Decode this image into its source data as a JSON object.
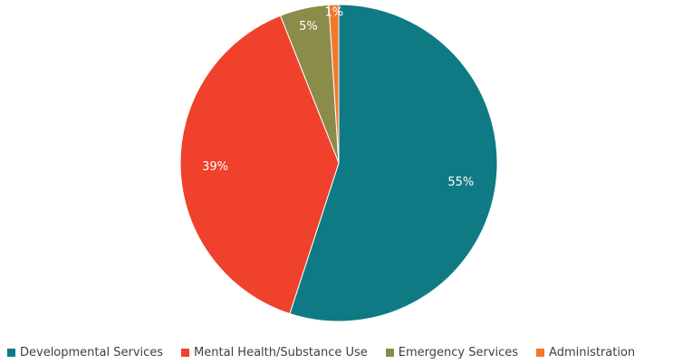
{
  "chart_data": {
    "type": "pie",
    "title": "",
    "start_angle_deg": 0,
    "direction": "clockwise",
    "slices": [
      {
        "name": "Developmental Services",
        "value": 55,
        "label": "55%",
        "color": "#107a84"
      },
      {
        "name": "Mental Health/Substance Use",
        "value": 39,
        "label": "39%",
        "color": "#ef412b"
      },
      {
        "name": "Emergency Services",
        "value": 5,
        "label": "5%",
        "color": "#8b8c4a"
      },
      {
        "name": "Administration",
        "value": 1,
        "label": "1%",
        "color": "#f4782b"
      }
    ],
    "legend": {
      "position": "bottom"
    }
  }
}
